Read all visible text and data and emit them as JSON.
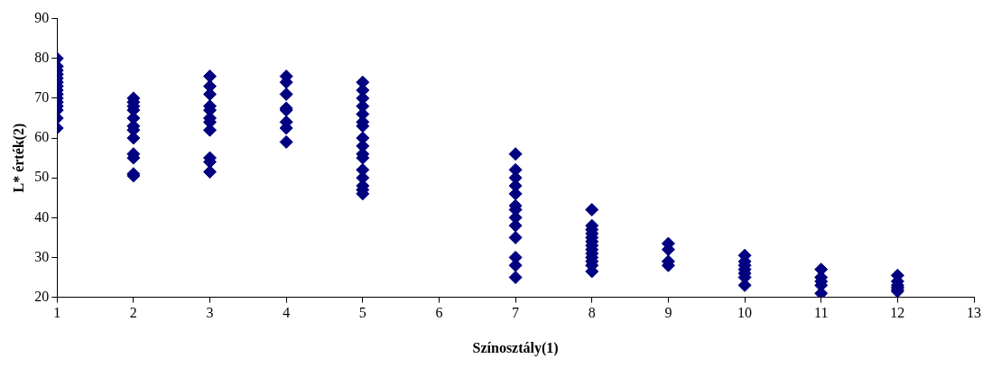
{
  "chart_data": {
    "type": "scatter",
    "xlabel": "Színosztály(1)",
    "ylabel": "L* érték(2)",
    "xlim": [
      1,
      13
    ],
    "xticks": [
      1,
      2,
      3,
      4,
      5,
      6,
      7,
      8,
      9,
      10,
      11,
      12,
      13
    ],
    "ylim": [
      20,
      90
    ],
    "yticks": [
      20,
      30,
      40,
      50,
      60,
      70,
      80,
      90
    ],
    "grid": false,
    "legend": false,
    "marker": "diamond",
    "series": [
      {
        "color": "#000080",
        "x": [
          1,
          1,
          1,
          1,
          1,
          1,
          1,
          1,
          1,
          1,
          1,
          1,
          1,
          1,
          1,
          2,
          2,
          2,
          2,
          2,
          2,
          2,
          2,
          2,
          2,
          2,
          2,
          3,
          3,
          3,
          3,
          3,
          3,
          3,
          3,
          3,
          3,
          3,
          4,
          4,
          4,
          4,
          4,
          4,
          4,
          4,
          5,
          5,
          5,
          5,
          5,
          5,
          5,
          5,
          5,
          5,
          5,
          5,
          5,
          5,
          5,
          5,
          7,
          7,
          7,
          7,
          7,
          7,
          7,
          7,
          7,
          7,
          7,
          7,
          7,
          8,
          8,
          8,
          8,
          8,
          8,
          8,
          8,
          8,
          8,
          8,
          8,
          8,
          9,
          9,
          9,
          9,
          10,
          10,
          10,
          10,
          10,
          10,
          10,
          11,
          11,
          11,
          11,
          11,
          12,
          12,
          12,
          12,
          12,
          12
        ],
        "values": [
          80,
          78,
          77,
          76,
          75,
          74,
          73,
          72,
          71,
          70,
          69,
          68,
          67,
          65,
          62.5,
          70,
          69,
          68,
          67,
          65,
          63,
          62,
          60,
          56,
          55,
          51,
          50.5,
          75.5,
          73,
          71,
          68,
          67,
          65,
          64,
          62,
          55,
          54,
          51.5,
          75.5,
          74,
          71,
          67.5,
          67,
          64,
          62.5,
          59,
          74,
          72,
          70,
          68,
          66,
          64,
          63,
          60,
          58,
          56,
          55,
          52,
          50,
          48,
          47,
          46,
          56,
          52,
          50,
          48,
          46,
          43,
          42,
          40,
          38,
          35,
          30,
          28,
          25,
          42,
          38,
          37,
          36,
          35,
          34,
          33,
          32,
          31,
          30,
          29,
          28,
          26.5,
          33.5,
          32,
          29,
          28,
          30.5,
          29,
          28,
          27,
          26,
          25,
          23,
          27,
          25,
          24,
          23,
          21,
          25.5,
          24,
          23,
          22.5,
          22,
          21.5
        ]
      }
    ]
  }
}
